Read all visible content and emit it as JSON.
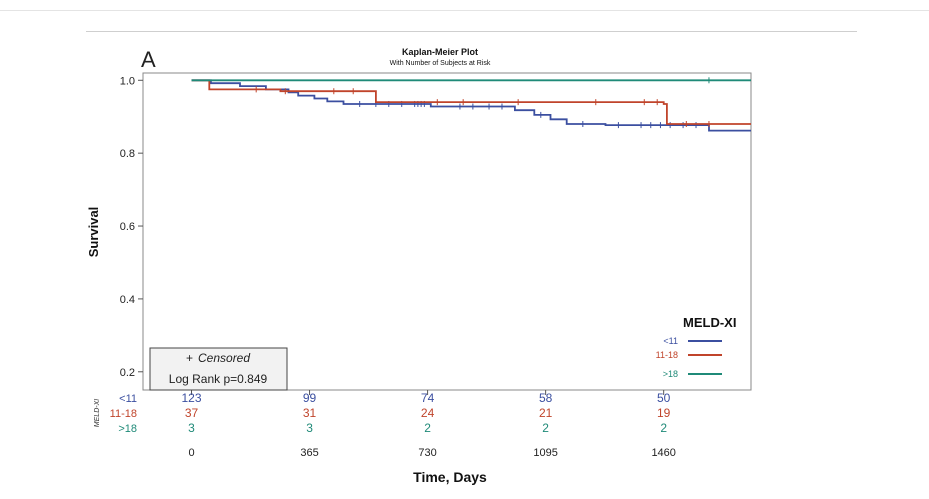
{
  "figure": {
    "panel_letter": "A",
    "title": "Kaplan-Meier Plot",
    "subtitle": "With Number of Subjects at Risk"
  },
  "legend": {
    "title": "MELD-XI",
    "entries": [
      {
        "label": "<11",
        "color": "#3b4fa0"
      },
      {
        "label": "11-18",
        "color": "#c0442b"
      },
      {
        "label": ">18",
        "color": "#1f8a78"
      }
    ]
  },
  "stats_box": {
    "censored_label": "Censored",
    "censored_symbol": "+",
    "logrank_label": "Log Rank p=0.849"
  },
  "risk_table": {
    "side_label": "MELD-XI",
    "rows": [
      {
        "label": "<11",
        "color": "#3b4fa0",
        "values": [
          "123",
          "99",
          "74",
          "58",
          "50"
        ]
      },
      {
        "label": "11-18",
        "color": "#c0442b",
        "values": [
          "37",
          "31",
          "24",
          "21",
          "19"
        ]
      },
      {
        "label": ">18",
        "color": "#1f8a78",
        "values": [
          "3",
          "3",
          "2",
          "2",
          "2"
        ]
      }
    ]
  },
  "chart_data": {
    "type": "line",
    "title": "Kaplan-Meier Plot",
    "subtitle": "With Number of Subjects at Risk",
    "xlabel": "Time, Days",
    "ylabel": "Survival",
    "xlim": [
      -150,
      1730
    ],
    "ylim": [
      0.15,
      1.02
    ],
    "xticks": [
      0,
      365,
      730,
      1095,
      1460
    ],
    "yticks": [
      0.2,
      0.4,
      0.6,
      0.8,
      1.0
    ],
    "ytick_labels": [
      "0.2",
      "0.4",
      "0.6",
      "0.8",
      "1.0"
    ],
    "grid": false,
    "legend_position": "bottom-right",
    "step": true,
    "series": [
      {
        "name": "<11",
        "color": "#3b4fa0",
        "points": [
          [
            0,
            1.0
          ],
          [
            60,
            1.0
          ],
          [
            60,
            0.992
          ],
          [
            150,
            0.992
          ],
          [
            150,
            0.984
          ],
          [
            230,
            0.984
          ],
          [
            230,
            0.975
          ],
          [
            300,
            0.975
          ],
          [
            300,
            0.967
          ],
          [
            330,
            0.967
          ],
          [
            330,
            0.958
          ],
          [
            380,
            0.958
          ],
          [
            380,
            0.95
          ],
          [
            420,
            0.95
          ],
          [
            420,
            0.942
          ],
          [
            470,
            0.942
          ],
          [
            470,
            0.935
          ],
          [
            740,
            0.935
          ],
          [
            740,
            0.928
          ],
          [
            1000,
            0.928
          ],
          [
            1000,
            0.918
          ],
          [
            1060,
            0.918
          ],
          [
            1060,
            0.905
          ],
          [
            1110,
            0.905
          ],
          [
            1110,
            0.893
          ],
          [
            1160,
            0.893
          ],
          [
            1160,
            0.88
          ],
          [
            1280,
            0.88
          ],
          [
            1280,
            0.877
          ],
          [
            1600,
            0.877
          ],
          [
            1600,
            0.862
          ],
          [
            1730,
            0.862
          ]
        ],
        "censored": [
          520,
          570,
          610,
          650,
          690,
          700,
          710,
          720,
          830,
          870,
          920,
          960,
          1080,
          1210,
          1320,
          1390,
          1420,
          1450,
          1480,
          1520,
          1560
        ]
      },
      {
        "name": "11-18",
        "color": "#c0442b",
        "points": [
          [
            0,
            1.0
          ],
          [
            55,
            1.0
          ],
          [
            55,
            0.975
          ],
          [
            275,
            0.975
          ],
          [
            275,
            0.97
          ],
          [
            570,
            0.97
          ],
          [
            570,
            0.94
          ],
          [
            1460,
            0.94
          ],
          [
            1460,
            0.935
          ],
          [
            1470,
            0.935
          ],
          [
            1470,
            0.88
          ],
          [
            1730,
            0.88
          ]
        ],
        "censored": [
          200,
          290,
          440,
          500,
          760,
          840,
          1010,
          1250,
          1400,
          1440,
          1530,
          1600
        ]
      },
      {
        "name": ">18",
        "color": "#1f8a78",
        "points": [
          [
            0,
            1.0
          ],
          [
            1730,
            1.0
          ]
        ],
        "censored": [
          1600
        ]
      }
    ]
  }
}
